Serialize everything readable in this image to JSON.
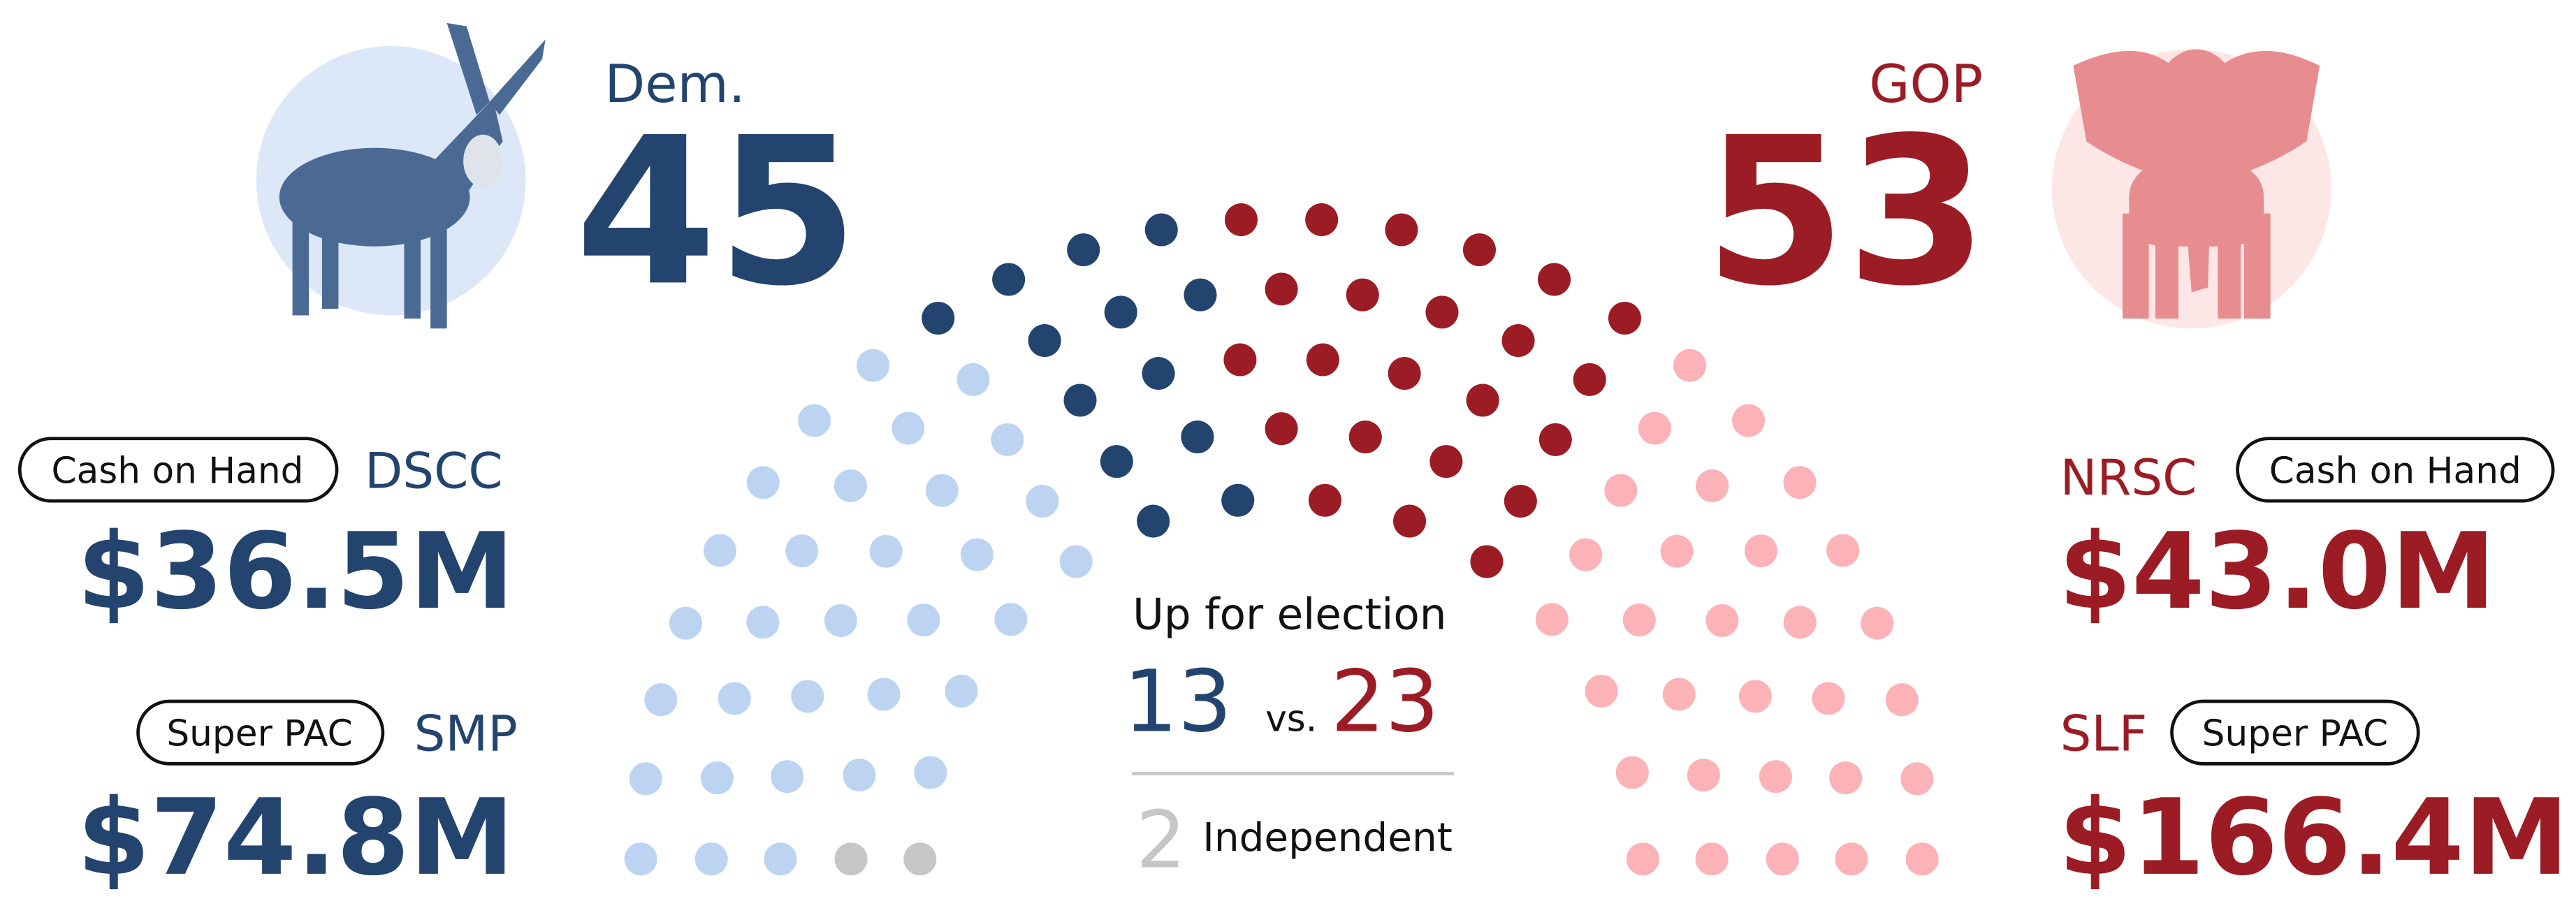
{
  "dem": {
    "label": "Dem.",
    "seats": 45,
    "committee": {
      "badge": "Cash on Hand",
      "name": "DSCC",
      "amount": "$36.5M"
    },
    "super_pac": {
      "badge": "Super PAC",
      "name": "SMP",
      "amount": "$74.8M"
    }
  },
  "gop": {
    "label": "GOP",
    "seats": 53,
    "committee": {
      "badge": "Cash on Hand",
      "name": "NRSC",
      "amount": "$43.0M"
    },
    "super_pac": {
      "badge": "Super PAC",
      "name": "SLF",
      "amount": "$166.4M"
    }
  },
  "election": {
    "title": "Up for election",
    "dem": 13,
    "vs": "vs.",
    "gop": 23,
    "independent": {
      "count": 2,
      "label": "Independent"
    }
  },
  "colors": {
    "dem": "#23446e",
    "dem_light": "#bcd4f2",
    "gop": "#9b1c24",
    "gop_light": "#fbb3b8",
    "independent": "#c6c6c6"
  }
}
